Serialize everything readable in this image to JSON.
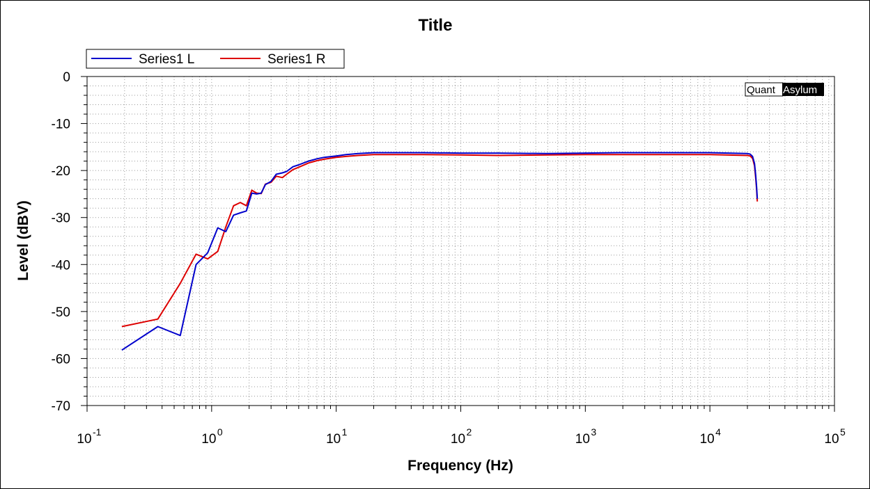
{
  "chart_data": {
    "type": "line",
    "title": "Title",
    "xlabel": "Frequency (Hz)",
    "ylabel": "Level (dBV)",
    "x_scale": "log",
    "xlim": [
      0.1,
      100000
    ],
    "ylim": [
      -70,
      0
    ],
    "x_ticks": [
      {
        "value": 0.1,
        "base": "10",
        "exp": "-1"
      },
      {
        "value": 1,
        "base": "10",
        "exp": "0"
      },
      {
        "value": 10,
        "base": "10",
        "exp": "1"
      },
      {
        "value": 100,
        "base": "10",
        "exp": "2"
      },
      {
        "value": 1000,
        "base": "10",
        "exp": "3"
      },
      {
        "value": 10000,
        "base": "10",
        "exp": "4"
      },
      {
        "value": 100000,
        "base": "10",
        "exp": "5"
      }
    ],
    "y_ticks": [
      0,
      -10,
      -20,
      -30,
      -40,
      -50,
      -60,
      -70
    ],
    "y_tick_labels": [
      "0",
      "-10",
      "-20",
      "-30",
      "-40",
      "-50",
      "-60",
      "-70"
    ],
    "grid": true,
    "legend_position": "top-left",
    "watermark": {
      "part1": "Quant",
      "part2": "Asylum"
    },
    "series": [
      {
        "name": "Series1 L",
        "color": "#0000cc",
        "points": [
          [
            0.19,
            -58.2
          ],
          [
            0.37,
            -53.2
          ],
          [
            0.56,
            -55.1
          ],
          [
            0.75,
            -40.0
          ],
          [
            0.93,
            -37.5
          ],
          [
            1.12,
            -32.2
          ],
          [
            1.3,
            -33.0
          ],
          [
            1.5,
            -29.5
          ],
          [
            1.7,
            -29.0
          ],
          [
            1.9,
            -28.6
          ],
          [
            2.1,
            -24.8
          ],
          [
            2.3,
            -25.0
          ],
          [
            2.5,
            -24.8
          ],
          [
            2.7,
            -23.0
          ],
          [
            3.0,
            -22.3
          ],
          [
            3.3,
            -20.8
          ],
          [
            3.7,
            -20.5
          ],
          [
            4.0,
            -20.2
          ],
          [
            4.5,
            -19.2
          ],
          [
            5.0,
            -18.8
          ],
          [
            6.0,
            -18.0
          ],
          [
            7.0,
            -17.5
          ],
          [
            8.0,
            -17.2
          ],
          [
            10,
            -16.9
          ],
          [
            12,
            -16.6
          ],
          [
            15,
            -16.4
          ],
          [
            20,
            -16.2
          ],
          [
            50,
            -16.2
          ],
          [
            100,
            -16.3
          ],
          [
            200,
            -16.3
          ],
          [
            500,
            -16.4
          ],
          [
            1000,
            -16.3
          ],
          [
            2000,
            -16.2
          ],
          [
            5000,
            -16.2
          ],
          [
            10000,
            -16.2
          ],
          [
            20000,
            -16.4
          ],
          [
            21000,
            -16.5
          ],
          [
            22000,
            -17.0
          ],
          [
            22800,
            -18.5
          ],
          [
            23300,
            -21.0
          ],
          [
            23700,
            -23.5
          ],
          [
            24000,
            -26.0
          ]
        ]
      },
      {
        "name": "Series1 R",
        "color": "#dd0000",
        "points": [
          [
            0.19,
            -53.2
          ],
          [
            0.37,
            -51.6
          ],
          [
            0.56,
            -44.0
          ],
          [
            0.75,
            -37.8
          ],
          [
            0.93,
            -38.8
          ],
          [
            1.12,
            -37.2
          ],
          [
            1.3,
            -32.0
          ],
          [
            1.5,
            -27.5
          ],
          [
            1.7,
            -26.8
          ],
          [
            1.9,
            -27.5
          ],
          [
            2.1,
            -24.2
          ],
          [
            2.3,
            -24.8
          ],
          [
            2.5,
            -24.9
          ],
          [
            2.7,
            -22.9
          ],
          [
            3.0,
            -22.5
          ],
          [
            3.3,
            -21.2
          ],
          [
            3.7,
            -21.5
          ],
          [
            4.0,
            -20.8
          ],
          [
            4.5,
            -19.8
          ],
          [
            5.0,
            -19.3
          ],
          [
            6.0,
            -18.4
          ],
          [
            7.0,
            -17.9
          ],
          [
            8.0,
            -17.6
          ],
          [
            10,
            -17.2
          ],
          [
            12,
            -17.0
          ],
          [
            15,
            -16.8
          ],
          [
            20,
            -16.6
          ],
          [
            50,
            -16.6
          ],
          [
            100,
            -16.7
          ],
          [
            200,
            -16.8
          ],
          [
            500,
            -16.7
          ],
          [
            1000,
            -16.6
          ],
          [
            2000,
            -16.6
          ],
          [
            5000,
            -16.6
          ],
          [
            10000,
            -16.6
          ],
          [
            20000,
            -16.8
          ],
          [
            21000,
            -16.9
          ],
          [
            22000,
            -17.4
          ],
          [
            22800,
            -19.0
          ],
          [
            23300,
            -21.6
          ],
          [
            23700,
            -24.0
          ],
          [
            24000,
            -26.6
          ]
        ]
      }
    ]
  }
}
